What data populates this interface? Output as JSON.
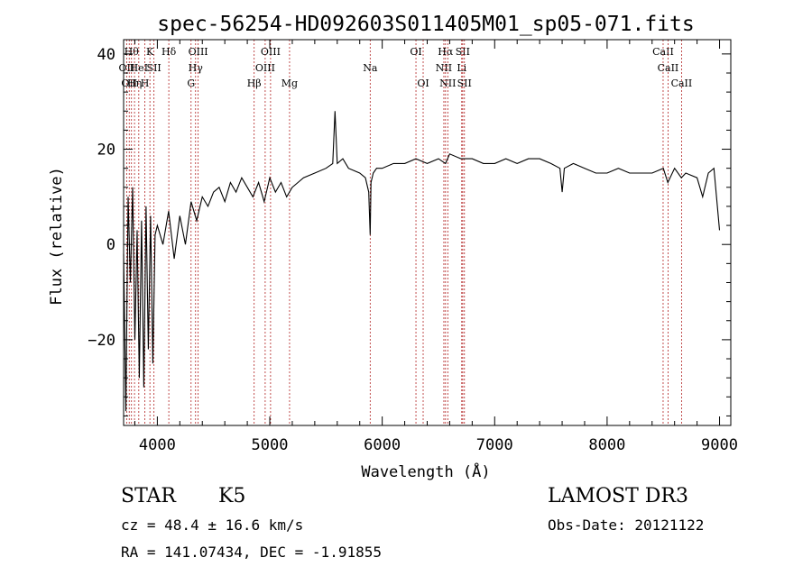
{
  "chart_data": {
    "type": "line",
    "title": "spec-56254-HD092603S011405M01_sp05-071.fits",
    "xlabel": "Wavelength (Å)",
    "ylabel": "Flux (relative)",
    "xlim": [
      3700,
      9100
    ],
    "ylim": [
      -38,
      43
    ],
    "xticks": [
      4000,
      5000,
      6000,
      7000,
      8000,
      9000
    ],
    "xtick_labels": [
      "4000",
      "5000",
      "6000",
      "7000",
      "8000",
      "9000"
    ],
    "yticks": [
      -20,
      0,
      20,
      40
    ],
    "ytick_labels": [
      "−20",
      "0",
      "20",
      "40"
    ],
    "grid": false,
    "line_color": "#000000",
    "marker_color": "#b22222",
    "series": [
      {
        "name": "flux",
        "x": [
          3700,
          3720,
          3740,
          3760,
          3780,
          3800,
          3820,
          3840,
          3860,
          3880,
          3900,
          3920,
          3940,
          3960,
          3980,
          4000,
          4050,
          4100,
          4150,
          4200,
          4250,
          4300,
          4350,
          4400,
          4450,
          4500,
          4550,
          4600,
          4650,
          4700,
          4750,
          4800,
          4850,
          4900,
          4950,
          5000,
          5050,
          5100,
          5150,
          5200,
          5250,
          5300,
          5400,
          5500,
          5560,
          5580,
          5600,
          5650,
          5700,
          5800,
          5850,
          5880,
          5893,
          5900,
          5920,
          5950,
          6000,
          6100,
          6200,
          6300,
          6400,
          6500,
          6563,
          6600,
          6700,
          6800,
          6900,
          7000,
          7100,
          7200,
          7300,
          7400,
          7500,
          7580,
          7600,
          7620,
          7700,
          7800,
          7900,
          8000,
          8100,
          8200,
          8300,
          8400,
          8500,
          8540,
          8600,
          8660,
          8700,
          8800,
          8850,
          8900,
          8950,
          9000
        ],
        "y": [
          -2,
          -35,
          10,
          -8,
          12,
          -20,
          3,
          -28,
          5,
          -30,
          8,
          -22,
          6,
          -25,
          2,
          4,
          0,
          7,
          -3,
          6,
          0,
          9,
          5,
          10,
          8,
          11,
          12,
          9,
          13,
          11,
          14,
          12,
          10,
          13,
          9,
          14,
          11,
          13,
          10,
          12,
          13,
          14,
          15,
          16,
          17,
          28,
          17,
          18,
          16,
          15,
          14,
          11,
          2,
          13,
          15,
          16,
          16,
          17,
          17,
          18,
          17,
          18,
          17,
          19,
          18,
          18,
          17,
          17,
          18,
          17,
          18,
          18,
          17,
          16,
          11,
          16,
          17,
          16,
          15,
          15,
          16,
          15,
          15,
          15,
          16,
          13,
          16,
          14,
          15,
          14,
          10,
          15,
          16,
          3
        ]
      }
    ],
    "line_markers": [
      {
        "wavelength": 3727,
        "label": "OII",
        "row": 1
      },
      {
        "wavelength": 3750,
        "label": "OII",
        "row": 2
      },
      {
        "wavelength": 3770,
        "label": "Hθ",
        "row": 0
      },
      {
        "wavelength": 3797,
        "label": "Hη",
        "row": 2
      },
      {
        "wavelength": 3835,
        "label": "HeI",
        "row": 1
      },
      {
        "wavelength": 3889,
        "label": "H",
        "row": 2
      },
      {
        "wavelength": 3934,
        "label": "K",
        "row": 0
      },
      {
        "wavelength": 3970,
        "label": "SII",
        "row": 1
      },
      {
        "wavelength": 4102,
        "label": "Hδ",
        "row": 0
      },
      {
        "wavelength": 4300,
        "label": "G",
        "row": 2
      },
      {
        "wavelength": 4340,
        "label": "Hγ",
        "row": 1
      },
      {
        "wavelength": 4363,
        "label": "OIII",
        "row": 0
      },
      {
        "wavelength": 4861,
        "label": "Hβ",
        "row": 2
      },
      {
        "wavelength": 4959,
        "label": "OIII",
        "row": 1
      },
      {
        "wavelength": 5007,
        "label": "OIII",
        "row": 0
      },
      {
        "wavelength": 5176,
        "label": "Mg",
        "row": 2
      },
      {
        "wavelength": 5893,
        "label": "Na",
        "row": 1
      },
      {
        "wavelength": 6300,
        "label": "OI",
        "row": 0
      },
      {
        "wavelength": 6364,
        "label": "OI",
        "row": 2
      },
      {
        "wavelength": 6548,
        "label": "NII",
        "row": 1
      },
      {
        "wavelength": 6563,
        "label": "Hα",
        "row": 0
      },
      {
        "wavelength": 6583,
        "label": "NII",
        "row": 2
      },
      {
        "wavelength": 6707,
        "label": "Li",
        "row": 1
      },
      {
        "wavelength": 6716,
        "label": "SII",
        "row": 0
      },
      {
        "wavelength": 6731,
        "label": "SII",
        "row": 2
      },
      {
        "wavelength": 8498,
        "label": "CaII",
        "row": 0
      },
      {
        "wavelength": 8542,
        "label": "CaII",
        "row": 1
      },
      {
        "wavelength": 8662,
        "label": "CaII",
        "row": 2
      }
    ]
  },
  "info": {
    "object_class": "STAR",
    "subclass": "K5",
    "survey": "LAMOST DR3",
    "cz": "cz = 48.4 ± 16.6 km/s",
    "obs_date": "Obs-Date: 20121122",
    "radec": "RA = 141.07434, DEC =  -1.91855"
  }
}
